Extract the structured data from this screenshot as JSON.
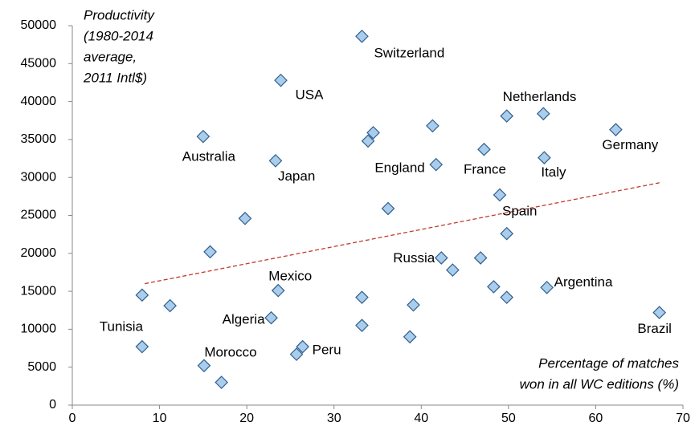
{
  "chart_data": {
    "type": "scatter",
    "y_title_lines": [
      "Productivity",
      "(1980-2014",
      "average,",
      "2011 Intl$)"
    ],
    "x_title_lines": [
      "Percentage of matches",
      "won  in all  WC editions (%)"
    ],
    "x": [
      33.2,
      23.9,
      15.0,
      23.3,
      34.5,
      33.9,
      41.3,
      49.8,
      54.0,
      62.3,
      47.2,
      41.7,
      54.1,
      49.0,
      36.2,
      19.8,
      15.8,
      49.8,
      42.3,
      43.6,
      46.8,
      8.0,
      11.2,
      23.6,
      33.2,
      39.1,
      48.3,
      49.8,
      54.4,
      67.3,
      22.8,
      33.2,
      38.7,
      8.0,
      26.4,
      25.7,
      15.1,
      17.1
    ],
    "y": [
      48600,
      42800,
      35400,
      32200,
      35900,
      34800,
      36800,
      38100,
      38400,
      36300,
      33700,
      31700,
      32600,
      27700,
      25900,
      24600,
      20200,
      22600,
      19400,
      17800,
      19400,
      14500,
      13100,
      15100,
      14200,
      13200,
      15600,
      14200,
      15500,
      12200,
      11500,
      10500,
      9000,
      7700,
      7700,
      6700,
      5200,
      3000
    ],
    "labels": [
      "Switzerland",
      "USA",
      "Australia",
      "Japan",
      null,
      null,
      null,
      "Netherlands",
      null,
      "Germany",
      "France",
      "England",
      "Italy",
      "Spain",
      null,
      null,
      null,
      null,
      "Russia",
      null,
      null,
      null,
      null,
      "Mexico",
      null,
      null,
      null,
      null,
      "Argentina",
      "Brazil",
      "Algeria",
      null,
      null,
      "Tunisia",
      "Peru",
      null,
      "Morocco",
      null
    ],
    "marker_color": "#a9cdea",
    "marker_edge": "#2f5f8f",
    "trendline": {
      "x": [
        8.3,
        67.3
      ],
      "y": [
        16000,
        29300
      ],
      "color": "#c0392b"
    },
    "xlim": [
      0,
      70
    ],
    "xticks": [
      0,
      10,
      20,
      30,
      40,
      50,
      60,
      70
    ],
    "ylim": [
      0,
      50000
    ],
    "yticks": [
      0,
      5000,
      10000,
      15000,
      20000,
      25000,
      30000,
      35000,
      40000,
      45000,
      50000
    ],
    "grid": false
  }
}
